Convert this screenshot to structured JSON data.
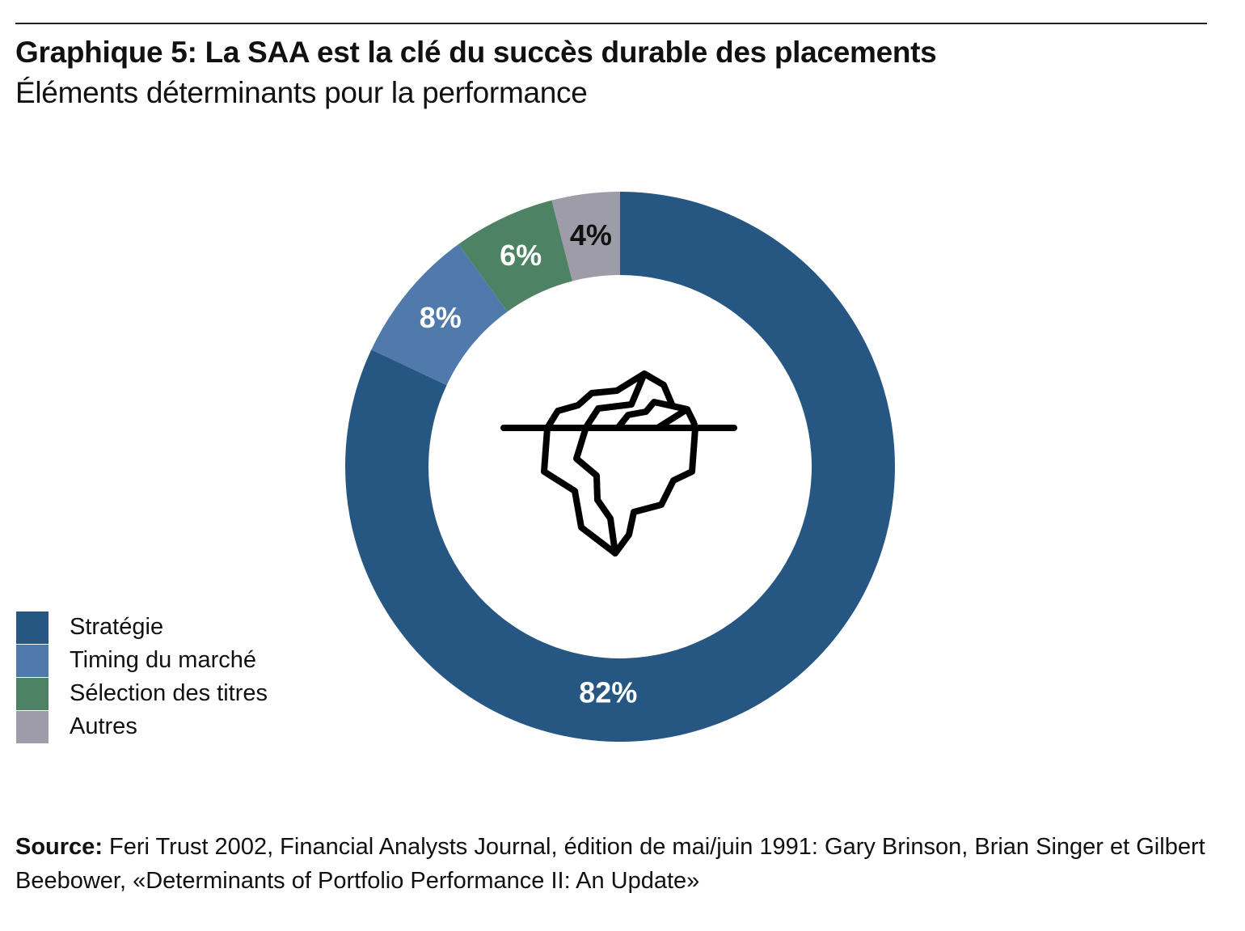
{
  "title": "Graphique 5: La SAA est la clé du succès durable des placements",
  "subtitle": "Éléments déterminants pour la performance",
  "chart_data": {
    "type": "pie",
    "variant": "donut",
    "categories": [
      "Stratégie",
      "Timing du marché",
      "Sélection des titres",
      "Autres"
    ],
    "values": [
      82,
      8,
      6,
      4
    ],
    "data_labels": [
      "82%",
      "8%",
      "6%",
      "4%"
    ],
    "colors": [
      "#265782",
      "#4f7aab",
      "#4e8264",
      "#9d9ca8"
    ],
    "label_colors": [
      "#ffffff",
      "#ffffff",
      "#ffffff",
      "#111111"
    ],
    "legend_position": "bottom-left",
    "center_icon": "iceberg-icon"
  },
  "source": {
    "label": "Source:",
    "text": " Feri Trust 2002, Financial Analysts Journal, édition de mai/juin 1991: Gary Brinson, Brian Singer et Gilbert Beebower, «Determinants of Portfolio Performance II: An Update»"
  }
}
